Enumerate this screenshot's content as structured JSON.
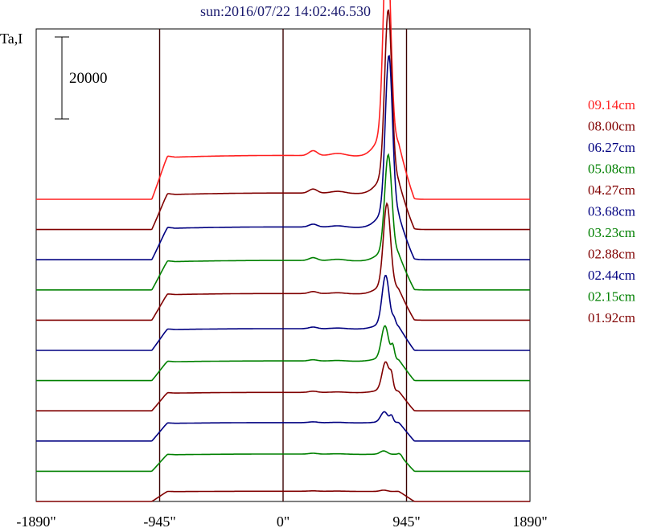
{
  "chart_data": {
    "type": "line",
    "title": "sun:2016/07/22 14:02:46.530",
    "ylabel": "Ta,I",
    "scale_bar_label": "20000",
    "scale_bar_value": 20000,
    "x_ticks": [
      {
        "value": -1890,
        "label": "-1890\""
      },
      {
        "value": -945,
        "label": "-945\""
      },
      {
        "value": 0,
        "label": "0\""
      },
      {
        "value": 945,
        "label": "945\""
      },
      {
        "value": 1890,
        "label": "1890\""
      }
    ],
    "xlim": [
      -1890,
      1890
    ],
    "vertical_lines": [
      -945,
      0,
      945
    ],
    "grid": false,
    "legend_position": "right",
    "series": [
      {
        "name": "09.14cm",
        "color": "#ff2020",
        "disk_level": 10700,
        "peak": 49700,
        "peak_x": 795,
        "hump": 1200,
        "humps": []
      },
      {
        "name": "08.00cm",
        "color": "#800000",
        "disk_level": 8900,
        "peak": 40300,
        "peak_x": 805,
        "hump": 1000,
        "humps": []
      },
      {
        "name": "06.27cm",
        "color": "#000080",
        "disk_level": 8000,
        "peak": 37700,
        "peak_x": 810,
        "hump": 700,
        "humps": []
      },
      {
        "name": "05.08cm",
        "color": "#008000",
        "disk_level": 7200,
        "peak": 23300,
        "peak_x": 805,
        "hump": 700,
        "humps": []
      },
      {
        "name": "04.27cm",
        "color": "#800000",
        "disk_level": 6500,
        "peak": 19800,
        "peak_x": 795,
        "hump": 500,
        "humps": []
      },
      {
        "name": "03.68cm",
        "color": "#000080",
        "disk_level": 5300,
        "peak": 11800,
        "peak_x": 785,
        "hump": 400,
        "humps": [
          {
            "x": 850,
            "h": 1500
          }
        ]
      },
      {
        "name": "03.23cm",
        "color": "#008000",
        "disk_level": 4800,
        "peak": 7800,
        "peak_x": 780,
        "hump": 300,
        "humps": [
          {
            "x": 840,
            "h": 3000
          }
        ]
      },
      {
        "name": "02.88cm",
        "color": "#800000",
        "disk_level": 4500,
        "peak": 6800,
        "peak_x": 785,
        "hump": 300,
        "humps": [
          {
            "x": 830,
            "h": 3000
          }
        ]
      },
      {
        "name": "02.44cm",
        "color": "#000080",
        "disk_level": 4500,
        "peak": 2500,
        "peak_x": 775,
        "hump": 200,
        "humps": [
          {
            "x": 830,
            "h": 1500
          }
        ]
      },
      {
        "name": "02.15cm",
        "color": "#008000",
        "disk_level": 4200,
        "peak": 800,
        "peak_x": 770,
        "hump": 200,
        "humps": [
          {
            "x": 900,
            "h": 400
          }
        ]
      },
      {
        "name": "01.92cm",
        "color": "#800000",
        "disk_level": 2500,
        "peak": 300,
        "peak_x": 770,
        "hump": 100,
        "humps": []
      }
    ]
  }
}
